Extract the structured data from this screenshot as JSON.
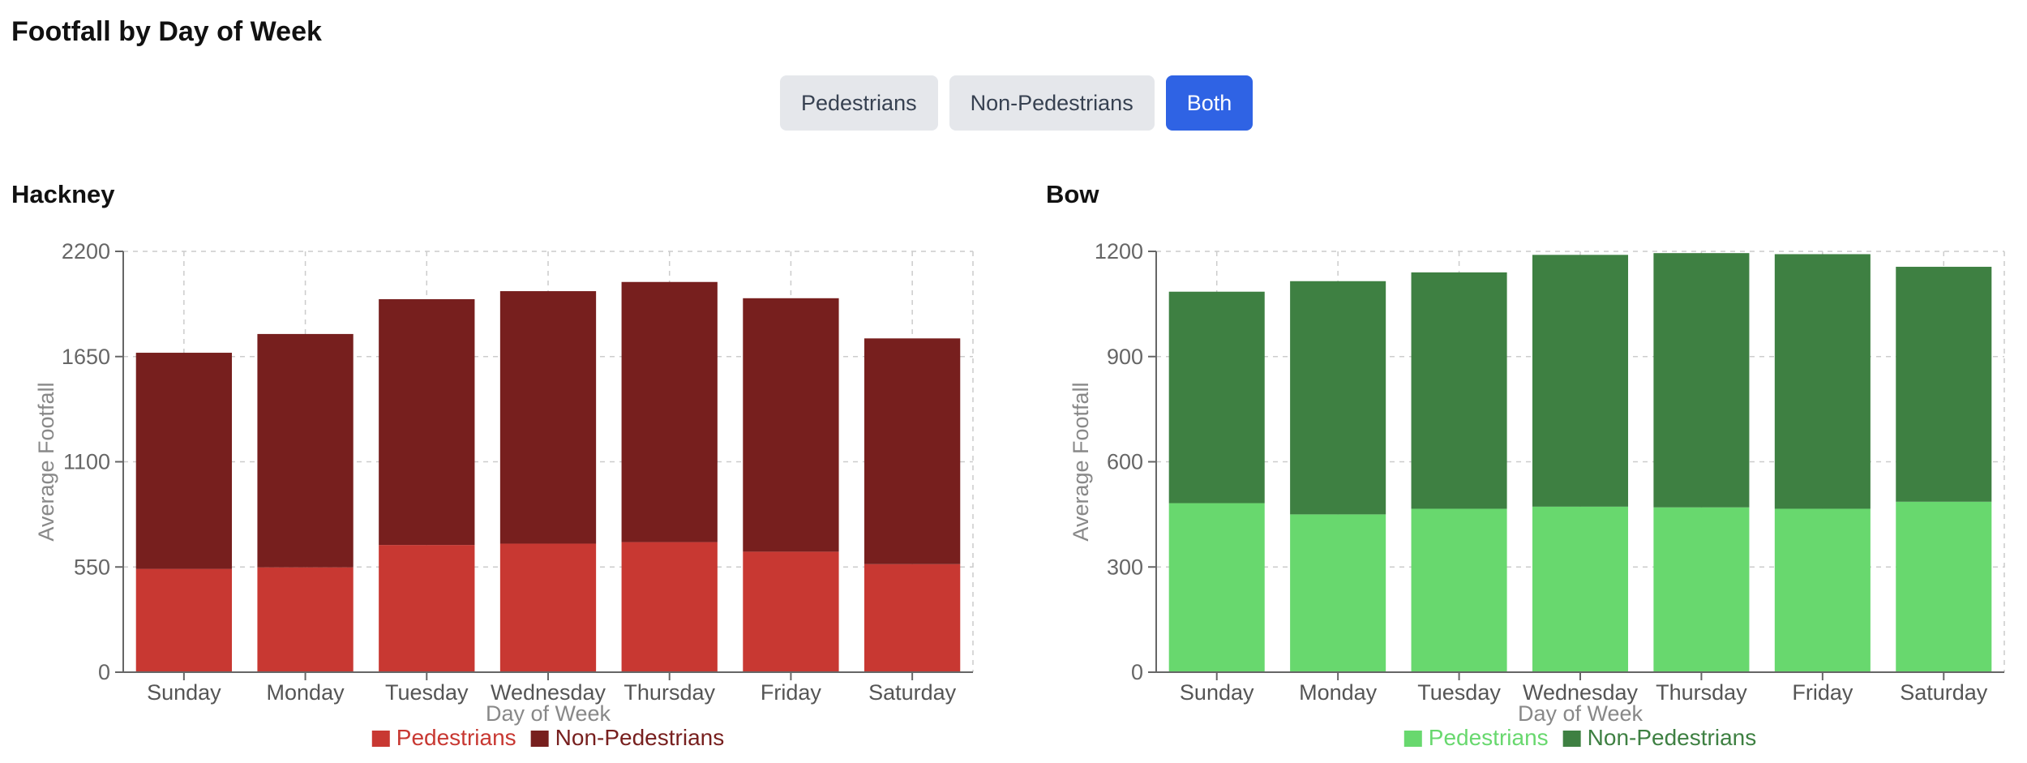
{
  "page": {
    "title": "Footfall by Day of Week"
  },
  "toggles": [
    {
      "label": "Pedestrians",
      "active": false
    },
    {
      "label": "Non-Pedestrians",
      "active": false
    },
    {
      "label": "Both",
      "active": true
    }
  ],
  "chart_data": [
    {
      "type": "bar",
      "stacked": true,
      "title": "Hackney",
      "xlabel": "Day of Week",
      "ylabel": "Average Footfall",
      "categories": [
        "Sunday",
        "Monday",
        "Tuesday",
        "Wednesday",
        "Thursday",
        "Friday",
        "Saturday"
      ],
      "ylim": [
        0,
        2200
      ],
      "yticks": [
        0,
        550,
        1100,
        1650,
        2200
      ],
      "grid": true,
      "legend": "bottom-center",
      "series": [
        {
          "name": "Pedestrians",
          "color": "#c83832",
          "values": [
            540,
            548,
            665,
            672,
            680,
            630,
            565
          ]
        },
        {
          "name": "Non-Pedestrians",
          "color": "#771f1e",
          "values": [
            1130,
            1220,
            1285,
            1320,
            1360,
            1325,
            1180
          ]
        }
      ]
    },
    {
      "type": "bar",
      "stacked": true,
      "title": "Bow",
      "xlabel": "Day of Week",
      "ylabel": "Average Footfall",
      "categories": [
        "Sunday",
        "Monday",
        "Tuesday",
        "Wednesday",
        "Thursday",
        "Friday",
        "Saturday"
      ],
      "ylim": [
        0,
        1200
      ],
      "yticks": [
        0,
        300,
        600,
        900,
        1200
      ],
      "grid": true,
      "legend": "bottom-center",
      "series": [
        {
          "name": "Pedestrians",
          "color": "#68d86e",
          "values": [
            482,
            450,
            466,
            472,
            470,
            466,
            486
          ]
        },
        {
          "name": "Non-Pedestrians",
          "color": "#3e8042",
          "values": [
            603,
            665,
            674,
            718,
            725,
            726,
            670
          ]
        }
      ]
    }
  ]
}
